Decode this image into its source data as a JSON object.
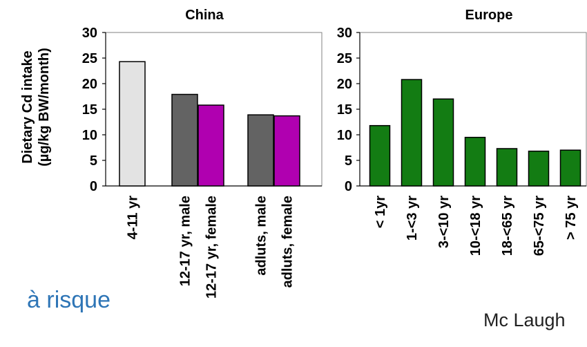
{
  "background_text": {
    "left_fragment": "à risque",
    "right_fragment": "Mc Laugh",
    "left_color": "#2e75b6",
    "right_color": "#222222"
  },
  "y_axis_label": [
    "Dietary Cd intake",
    "(µg/kg BW/month)"
  ],
  "chart_data": [
    {
      "type": "bar",
      "title": "China",
      "ylim": [
        0,
        30
      ],
      "yticks": [
        0,
        5,
        10,
        15,
        20,
        25,
        30
      ],
      "grid": false,
      "bars": [
        {
          "category": "4-11 yr",
          "value": 24.3,
          "color": "#e3e3e3"
        },
        {
          "category": "12-17 yr, male",
          "value": 17.9,
          "color": "#636363"
        },
        {
          "category": "12-17 yr, female",
          "value": 15.8,
          "color": "#b000b0"
        },
        {
          "category": "adluts, male",
          "value": 13.9,
          "color": "#636363"
        },
        {
          "category": "adluts, female",
          "value": 13.7,
          "color": "#b000b0"
        }
      ]
    },
    {
      "type": "bar",
      "title": "Europe",
      "ylim": [
        0,
        30
      ],
      "yticks": [
        0,
        5,
        10,
        15,
        20,
        25,
        30
      ],
      "grid": false,
      "bars": [
        {
          "category": "< 1yr",
          "value": 11.8,
          "color": "#137c13"
        },
        {
          "category": "1-<3 yr",
          "value": 20.8,
          "color": "#137c13"
        },
        {
          "category": "3-<10 yr",
          "value": 17.0,
          "color": "#137c13"
        },
        {
          "category": "10-<18 yr",
          "value": 9.5,
          "color": "#137c13"
        },
        {
          "category": "18-<65 yr",
          "value": 7.3,
          "color": "#137c13"
        },
        {
          "category": "65-<75 yr",
          "value": 6.8,
          "color": "#137c13"
        },
        {
          "category": ">  75 yr",
          "value": 7.0,
          "color": "#137c13"
        }
      ]
    }
  ]
}
